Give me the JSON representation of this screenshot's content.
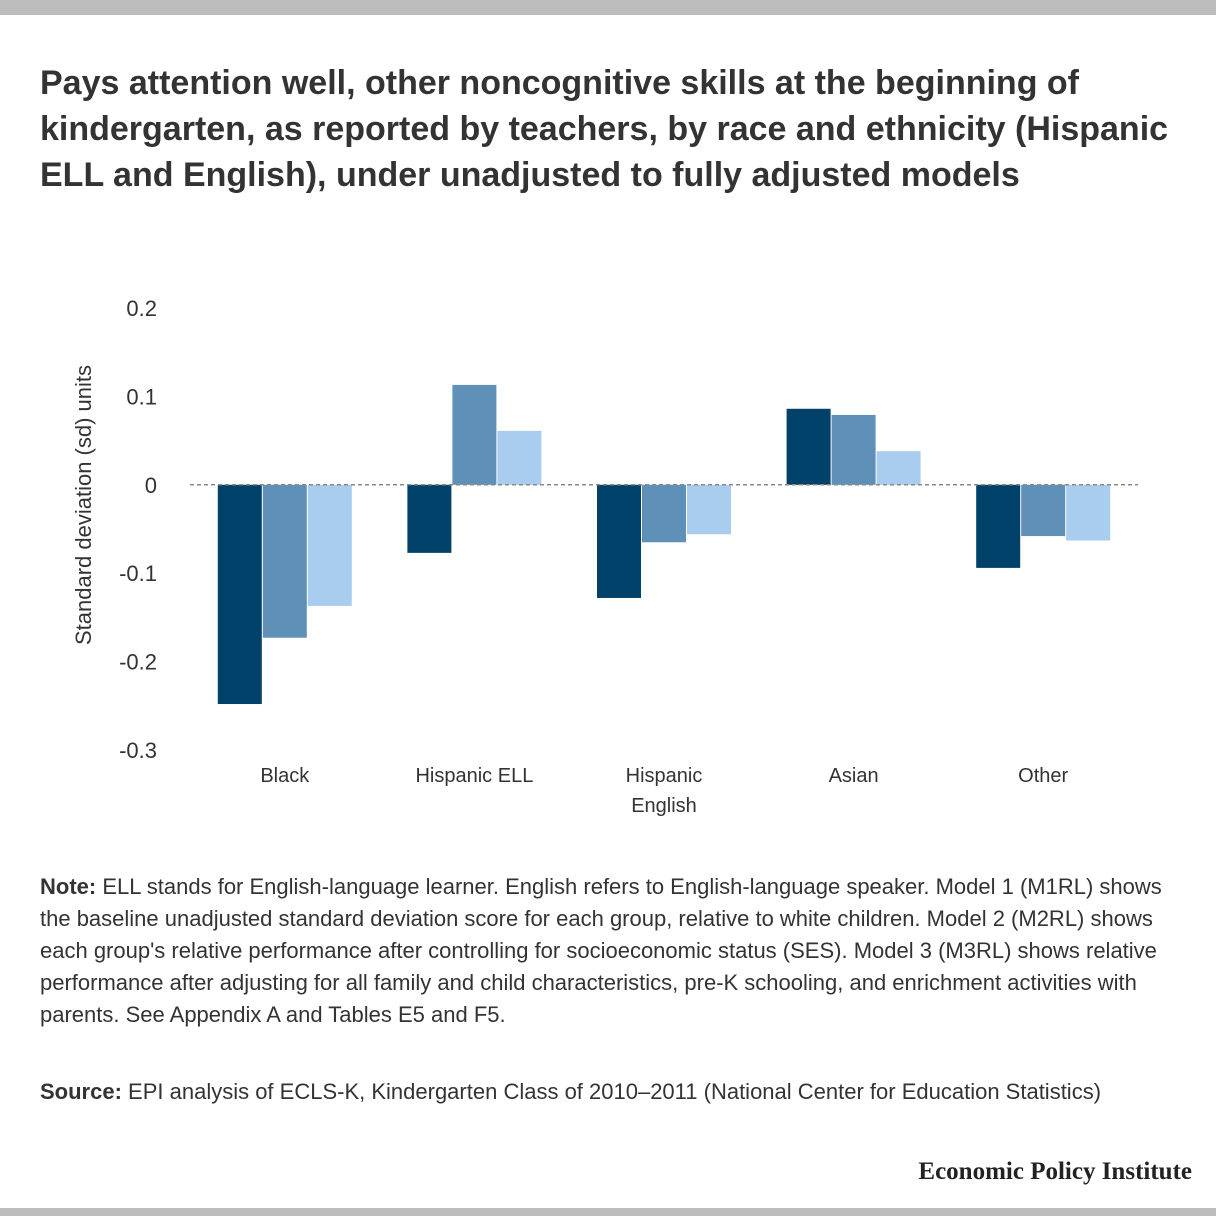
{
  "title": "Pays attention well, other noncognitive skills at the beginning of kindergarten, as reported by teachers, by race and ethnicity (Hispanic ELL and English), under unadjusted to fully adjusted models",
  "chart_data": {
    "type": "bar",
    "categories": [
      [
        "Black"
      ],
      [
        "Hispanic ELL"
      ],
      [
        "Hispanic",
        "English"
      ],
      [
        "Asian"
      ],
      [
        "Other"
      ]
    ],
    "series": [
      {
        "values": [
          -0.248,
          -0.077,
          -0.128,
          0.086,
          -0.094
        ],
        "color": "#00416a"
      },
      {
        "values": [
          -0.173,
          0.113,
          -0.065,
          0.079,
          -0.058
        ],
        "color": "#5f91b8"
      },
      {
        "values": [
          -0.137,
          0.061,
          -0.056,
          0.038,
          -0.063
        ],
        "color": "#a9cdee"
      }
    ],
    "ylabel": "Standard deviation (sd) units",
    "ylim": [
      -0.3,
      0.2
    ],
    "yticks": [
      "0.2",
      "0.1",
      "0",
      "-0.1",
      "-0.2",
      "-0.3"
    ],
    "ytick_values": [
      0.2,
      0.1,
      0,
      -0.1,
      -0.2,
      -0.3
    ],
    "zero_line": "dashed",
    "grid": false,
    "legend": "none"
  },
  "note": {
    "lead": "Note:",
    "text": " ELL stands for English-language learner. English refers to English-language speaker. Model 1 (M1RL) shows the baseline unadjusted standard deviation score for each group, relative to white children. Model 2 (M2RL) shows each group's relative performance after controlling for socioeconomic status (SES). Model 3 (M3RL) shows relative performance after adjusting for all family and child characteristics, pre-K schooling, and enrichment activities with parents. See Appendix A and Tables E5 and F5."
  },
  "source": {
    "lead": "Source:",
    "text": " EPI analysis of ECLS-K, Kindergarten Class of 2010–2011 (National Center for Education Statistics)"
  },
  "brand": "Economic Policy Institute"
}
